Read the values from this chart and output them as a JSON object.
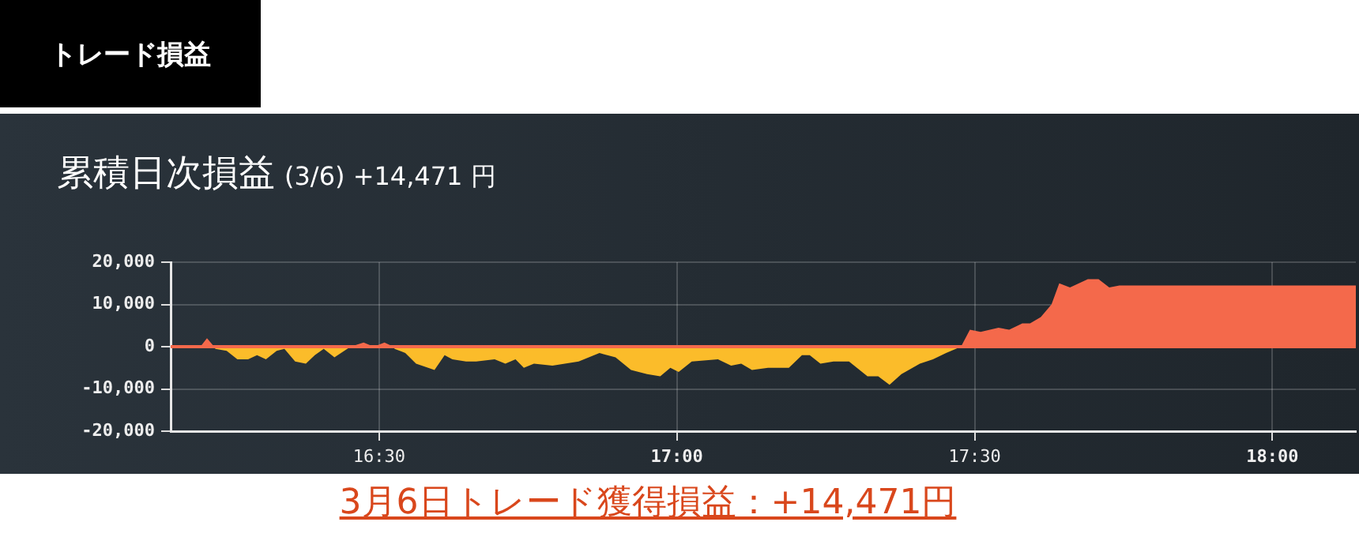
{
  "chart_data": {
    "type": "area",
    "title": "累積日次損益",
    "subtitle": "(3/6) +14,471 円",
    "annotations": [
      "トレード損益",
      "3月6日トレード獲得損益：+14,471円"
    ],
    "x": [
      16.152,
      16.2,
      16.211,
      16.223,
      16.225,
      16.244,
      16.262,
      16.28,
      16.295,
      16.31,
      16.328,
      16.341,
      16.359,
      16.377,
      16.392,
      16.407,
      16.425,
      16.452,
      16.474,
      16.491,
      16.509,
      16.524,
      16.526,
      16.544,
      16.562,
      16.593,
      16.61,
      16.623,
      16.646,
      16.663,
      16.694,
      16.712,
      16.729,
      16.743,
      16.76,
      16.791,
      16.835,
      16.87,
      16.897,
      16.923,
      16.95,
      16.972,
      16.989,
      17.003,
      17.025,
      17.069,
      17.091,
      17.108,
      17.126,
      17.153,
      17.188,
      17.21,
      17.223,
      17.241,
      17.263,
      17.289,
      17.32,
      17.338,
      17.357,
      17.377,
      17.408,
      17.43,
      17.452,
      17.477,
      17.492,
      17.51,
      17.54,
      17.558,
      17.58,
      17.593,
      17.611,
      17.629,
      17.642,
      17.66,
      17.69,
      17.708,
      17.726,
      17.743,
      18.14
    ],
    "series": [
      {
        "color": "#f4694b",
        "values": [
          0,
          0,
          2000,
          0,
          null,
          null,
          null,
          null,
          null,
          null,
          null,
          null,
          null,
          null,
          null,
          null,
          null,
          0,
          1000,
          0,
          1000,
          0,
          null,
          null,
          null,
          null,
          null,
          null,
          null,
          null,
          null,
          null,
          null,
          null,
          null,
          null,
          null,
          null,
          null,
          null,
          null,
          null,
          null,
          null,
          null,
          null,
          null,
          null,
          null,
          null,
          null,
          null,
          null,
          null,
          null,
          null,
          null,
          null,
          null,
          null,
          null,
          null,
          null,
          0,
          4000,
          3500,
          4500,
          4000,
          5500,
          5500,
          7000,
          10000,
          15000,
          14000,
          16000,
          16000,
          14000,
          14500,
          14500
        ]
      },
      {
        "color": "#fbbc2a",
        "values": [
          null,
          null,
          null,
          0,
          -500,
          -1000,
          -3000,
          -3000,
          -2000,
          -3000,
          -1000,
          -500,
          -3500,
          -4000,
          -2000,
          -500,
          -2500,
          0,
          null,
          null,
          null,
          0,
          -500,
          -1500,
          -4000,
          -5500,
          -2000,
          -3000,
          -3500,
          -3500,
          -3000,
          -4000,
          -3000,
          -5000,
          -4000,
          -4500,
          -3500,
          -1500,
          -2500,
          -5500,
          -6500,
          -7000,
          -5000,
          -6000,
          -3500,
          -3000,
          -4500,
          -4000,
          -5500,
          -5000,
          -5000,
          -2000,
          -2000,
          -4000,
          -3500,
          -3500,
          -7000,
          -7000,
          -9000,
          -6500,
          -4000,
          -3000,
          -1500,
          0,
          null,
          null,
          null,
          null,
          null,
          null,
          null,
          null,
          null,
          null,
          null,
          null,
          null,
          null,
          null
        ]
      }
    ],
    "xlim": [
      16.15,
      18.14
    ],
    "xticks": [
      {
        "value": 16.5,
        "label": "16:30"
      },
      {
        "value": 17,
        "label": "17:00"
      },
      {
        "value": 17.5,
        "label": "17:30"
      },
      {
        "value": 18,
        "label": "18:00"
      }
    ],
    "ylim": [
      -20000,
      20000
    ],
    "yticks": [
      {
        "value": -20000,
        "label": "-20,000"
      },
      {
        "value": -10000,
        "label": "-10,000"
      },
      {
        "value": 0,
        "label": "0"
      },
      {
        "value": 10000,
        "label": "10,000"
      },
      {
        "value": 20000,
        "label": "20,000"
      }
    ],
    "grid": true,
    "ref_lines": [
      {
        "axis": "y",
        "value": 0,
        "color": "#f4694b"
      }
    ]
  }
}
